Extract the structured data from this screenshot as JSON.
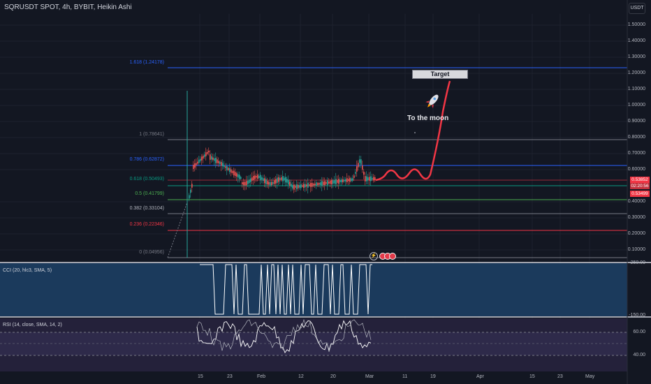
{
  "header": {
    "title": "SQRUSDT SPOT, 4h, BYBIT, Heikin Ashi",
    "currency": "USDT"
  },
  "fib_levels": [
    {
      "label": "1.618 (1.24178)",
      "color": "#2962ff"
    },
    {
      "label": "1 (0.78641)",
      "color": "#787b86"
    },
    {
      "label": "0.786 (0.62872)",
      "color": "#2962ff"
    },
    {
      "label": "0.618 (0.50493)",
      "color": "#089981"
    },
    {
      "label": "0.5 (0.41799)",
      "color": "#4caf50"
    },
    {
      "label": "0.382 (0.33104)",
      "color": "#787b86"
    },
    {
      "label": "0.236 (0.22346)",
      "color": "#f23645"
    },
    {
      "label": "0 (0.04956)",
      "color": "#787b86"
    }
  ],
  "price_axis": [
    "1.50000",
    "1.40000",
    "1.30000",
    "1.20000",
    "1.10000",
    "1.00000",
    "0.90000",
    "0.80000",
    "0.70000",
    "0.60000",
    "0.40000",
    "0.30000",
    "0.20000",
    "0.10000"
  ],
  "price_badges": [
    "0.53852",
    "02:20:56",
    "0.53499"
  ],
  "annotations": {
    "target": "Target",
    "moon": "To the moon"
  },
  "cci": {
    "title": "CCI (20, hlc3, SMA, 5)",
    "ticks": [
      "250.00",
      "-150.00"
    ]
  },
  "rsi": {
    "title": "RSI (14, close, SMA, 14, 2)",
    "ticks": [
      "60.00",
      "40.00"
    ]
  },
  "date_axis": [
    "15",
    "23",
    "Feb",
    "12",
    "20",
    "Mar",
    "11",
    "19",
    "Apr",
    "15",
    "23",
    "May"
  ],
  "colors": {
    "bull": "#26a69a",
    "bear": "#ef5350",
    "projection": "#f23645",
    "cci_bg": "#1b3a5c",
    "rsi_bg": "#2a2540"
  }
}
